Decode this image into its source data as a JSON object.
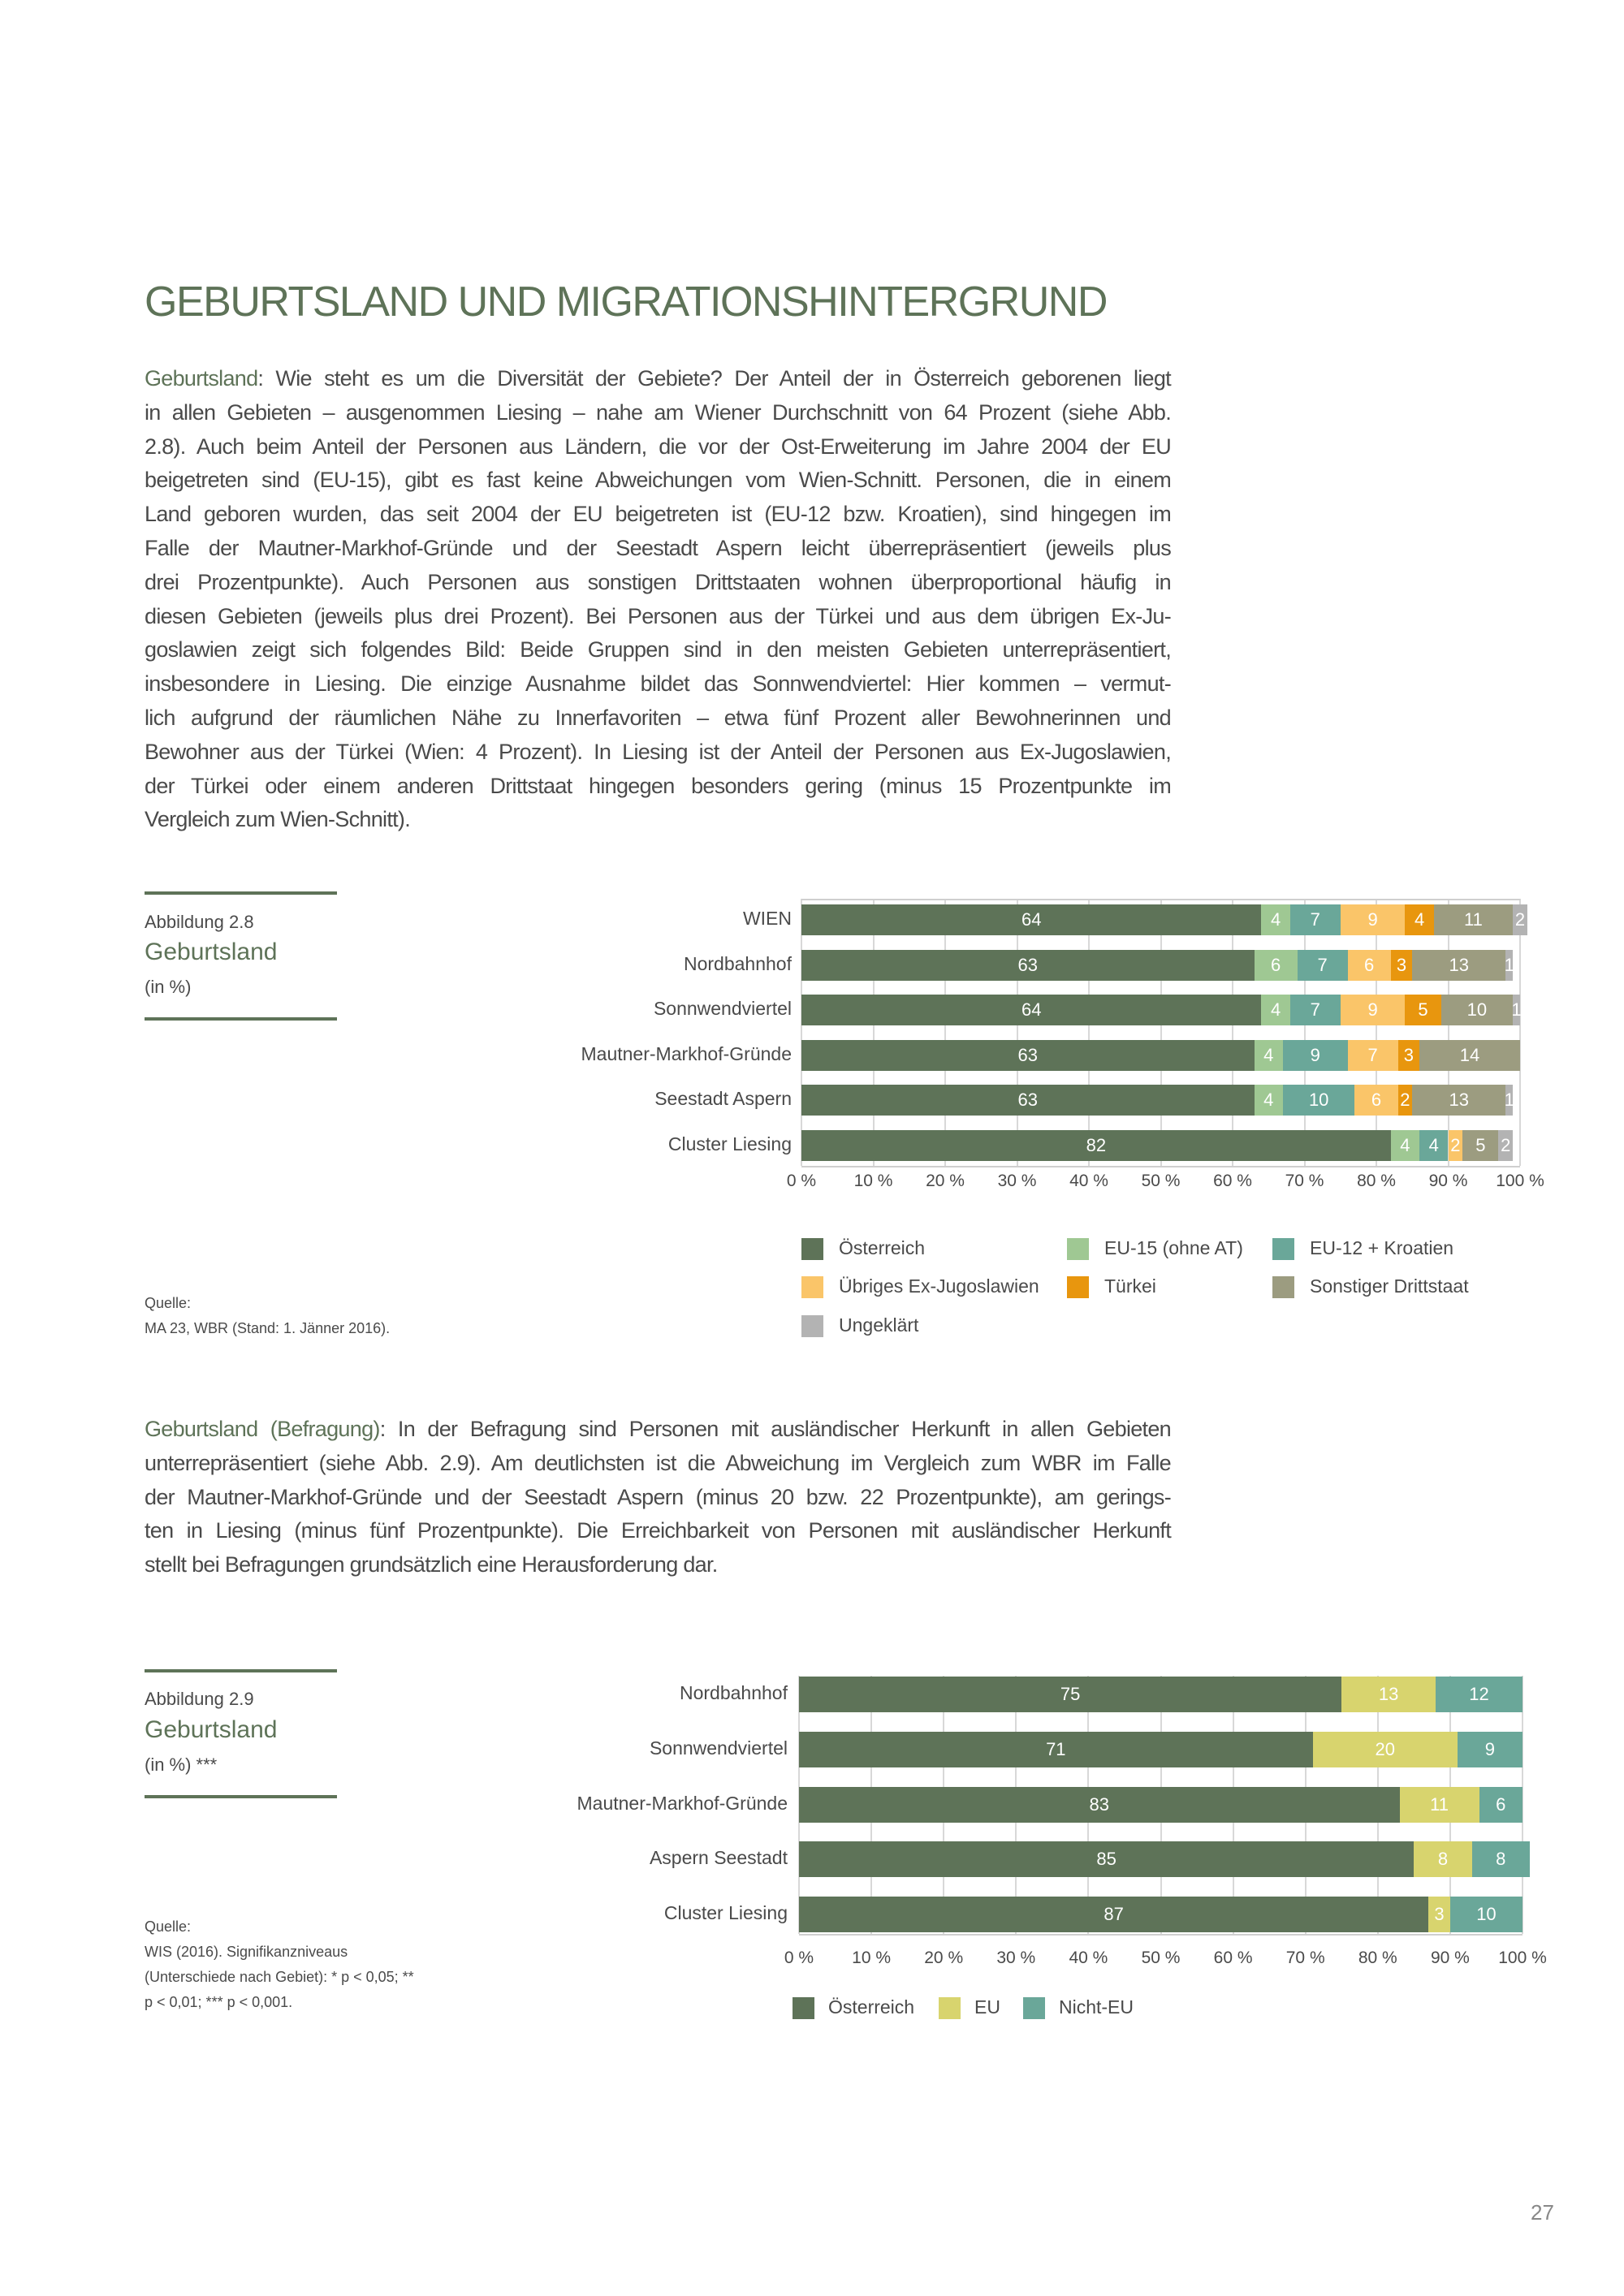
{
  "heading": "GEBURTSLAND UND MIGRATIONSHINTERGRUND",
  "para1": {
    "lead": "Geburtsland",
    "lines": [
      ": Wie steht es um die Diversität der Gebiete? Der Anteil der in Österreich geborenen liegt",
      "in allen Gebieten – ausgenommen Liesing – nahe am Wiener Durchschnitt von 64 Prozent (siehe Abb.",
      "2.8). Auch beim Anteil der Personen aus Ländern, die vor der Ost-Erweiterung im Jahre 2004 der EU",
      "beigetreten sind (EU-15), gibt es fast keine Abweichungen vom Wien-Schnitt. Personen, die in einem",
      "Land geboren wurden, das seit 2004 der EU beigetreten ist (EU-12 bzw. Kroatien), sind hingegen im",
      "Falle der Mautner-Markhof-Gründe und der Seestadt Aspern leicht überrepräsentiert (jeweils plus",
      "drei Prozentpunkte). Auch Personen aus sonstigen Drittstaaten wohnen überproportional häufig in",
      "diesen Gebieten (jeweils plus drei Prozent). Bei Personen aus der Türkei und aus dem übrigen Ex-Ju-",
      "goslawien zeigt sich folgendes Bild: Beide Gruppen sind in den meisten Gebieten unterrepräsentiert,",
      "insbesondere in Liesing. Die einzige Ausnahme bildet das Sonnwendviertel: Hier kommen – vermut-",
      "lich aufgrund der räumlichen Nähe zu Innerfavoriten – etwa fünf Prozent aller Bewohnerinnen und",
      "Bewohner aus der Türkei (Wien: 4 Prozent). In Liesing ist der Anteil der Personen aus Ex-Jugoslawien,",
      "der Türkei oder einem anderen Drittstaat hingegen besonders gering (minus 15 Prozentpunkte im",
      "Vergleich zum Wien-Schnitt)."
    ]
  },
  "fig1": {
    "number": "Abbildung 2.8",
    "title": "Geburtsland",
    "unit": "(in %)",
    "source_label": "Quelle:",
    "source_lines": [
      "MA 23, WBR (Stand: 1. Jänner 2016)."
    ]
  },
  "para2": {
    "lead": "Geburtsland (Befragung)",
    "lines": [
      ": In der Befragung sind Personen mit ausländischer Herkunft in allen Gebieten",
      "unterrepräsentiert (siehe Abb. 2.9). Am deutlichsten ist die Abweichung im Vergleich zum WBR im Falle",
      "der Mautner-Markhof-Gründe und der Seestadt Aspern (minus 20 bzw. 22 Prozentpunkte), am gerings-",
      "ten in Liesing (minus fünf Prozentpunkte). Die Erreichbarkeit von Personen mit ausländischer Herkunft",
      "stellt bei Befragungen grundsätzlich eine Herausforderung dar."
    ]
  },
  "fig2": {
    "number": "Abbildung 2.9",
    "title": "Geburtsland",
    "unit": "(in %) ***",
    "source_label": "Quelle:",
    "source_lines": [
      "WIS (2016). Signifikanzniveaus",
      "(Unterschiede nach Gebiet): * p < 0,05; **",
      "p < 0,01; *** p < 0,001."
    ]
  },
  "page_number": "27",
  "chart_data": [
    {
      "type": "bar",
      "stacked": true,
      "orientation": "horizontal",
      "title": "Geburtsland (in %)",
      "categories": [
        "WIEN",
        "Nordbahnhof",
        "Sonnwendviertel",
        "Mautner-Markhof-Gründe",
        "Seestadt Aspern",
        "Cluster Liesing"
      ],
      "xlim": [
        0,
        100
      ],
      "xticks": [
        "0 %",
        "10 %",
        "20 %",
        "30 %",
        "40 %",
        "50 %",
        "60 %",
        "70 %",
        "80 %",
        "90 %",
        "100 %"
      ],
      "grid": true,
      "legend_position": "bottom",
      "series": [
        {
          "name": "Österreich",
          "color": "#5e7358",
          "values": [
            64,
            63,
            64,
            63,
            63,
            82
          ]
        },
        {
          "name": "EU-15 (ohne AT)",
          "color": "#9fc893",
          "values": [
            4,
            6,
            4,
            4,
            4,
            4
          ]
        },
        {
          "name": "EU-12 + Kroatien",
          "color": "#6aa799",
          "values": [
            7,
            7,
            7,
            9,
            10,
            4
          ]
        },
        {
          "name": "Übriges Ex-Jugoslawien",
          "color": "#fac569",
          "values": [
            9,
            6,
            9,
            7,
            6,
            2
          ]
        },
        {
          "name": "Türkei",
          "color": "#e8960e",
          "values": [
            4,
            3,
            5,
            3,
            2,
            0
          ]
        },
        {
          "name": "Sonstiger Drittstaat",
          "color": "#9c9c80",
          "values": [
            11,
            13,
            10,
            14,
            13,
            5
          ]
        },
        {
          "name": "Ungeklärt",
          "color": "#b3b3b3",
          "values": [
            2,
            1,
            1,
            0,
            1,
            2
          ]
        }
      ]
    },
    {
      "type": "bar",
      "stacked": true,
      "orientation": "horizontal",
      "title": "Geburtsland (in %) ***",
      "categories": [
        "Nordbahnhof",
        "Sonnwendviertel",
        "Mautner-Markhof-Gründe",
        "Aspern Seestadt",
        "Cluster Liesing"
      ],
      "xlim": [
        0,
        100
      ],
      "xticks": [
        "0 %",
        "10 %",
        "20 %",
        "30 %",
        "40 %",
        "50 %",
        "60 %",
        "70 %",
        "80 %",
        "90 %",
        "100 %"
      ],
      "grid": true,
      "legend_position": "bottom",
      "series": [
        {
          "name": "Österreich",
          "color": "#5e7358",
          "values": [
            75,
            71,
            83,
            85,
            87
          ]
        },
        {
          "name": "EU",
          "color": "#d8d46e",
          "values": [
            13,
            20,
            11,
            8,
            3
          ]
        },
        {
          "name": "Nicht-EU",
          "color": "#6aa799",
          "values": [
            12,
            9,
            6,
            8,
            10
          ]
        }
      ]
    }
  ]
}
